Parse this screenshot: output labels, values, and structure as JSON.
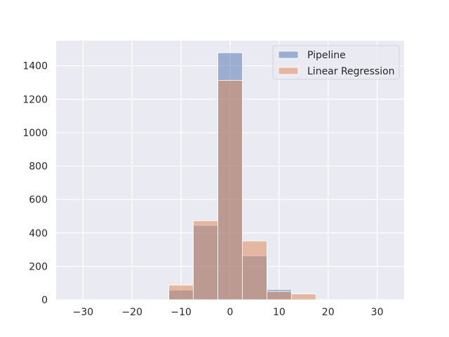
{
  "chart_data": {
    "type": "bar",
    "title": "",
    "xlabel": "",
    "ylabel": "",
    "xlim": [
      -35.5,
      35.5
    ],
    "ylim": [
      0,
      1550
    ],
    "grid": true,
    "legend_position": "top-right",
    "x_ticks": [
      -30,
      -20,
      -10,
      0,
      10,
      20,
      30
    ],
    "y_ticks": [
      0,
      200,
      400,
      600,
      800,
      1000,
      1200,
      1400
    ],
    "colors": {
      "Pipeline": "#4c72b0",
      "Linear Regression": "#dd8452"
    },
    "series": [
      {
        "name": "Pipeline",
        "bins": [
          {
            "x0": -12.5,
            "x1": -7.5,
            "value": 58
          },
          {
            "x0": -7.5,
            "x1": -2.5,
            "value": 445
          },
          {
            "x0": -2.5,
            "x1": 2.5,
            "value": 1478
          },
          {
            "x0": 2.5,
            "x1": 7.5,
            "value": 262
          },
          {
            "x0": 7.5,
            "x1": 12.5,
            "value": 62
          },
          {
            "x0": 12.5,
            "x1": 17.5,
            "value": 5
          }
        ]
      },
      {
        "name": "Linear Regression",
        "bins": [
          {
            "x0": -12.5,
            "x1": -7.5,
            "value": 88
          },
          {
            "x0": -7.5,
            "x1": -2.5,
            "value": 473
          },
          {
            "x0": -2.5,
            "x1": 2.5,
            "value": 1313
          },
          {
            "x0": 2.5,
            "x1": 7.5,
            "value": 352
          },
          {
            "x0": 7.5,
            "x1": 12.5,
            "value": 50
          },
          {
            "x0": 12.5,
            "x1": 17.5,
            "value": 35
          }
        ]
      }
    ]
  }
}
